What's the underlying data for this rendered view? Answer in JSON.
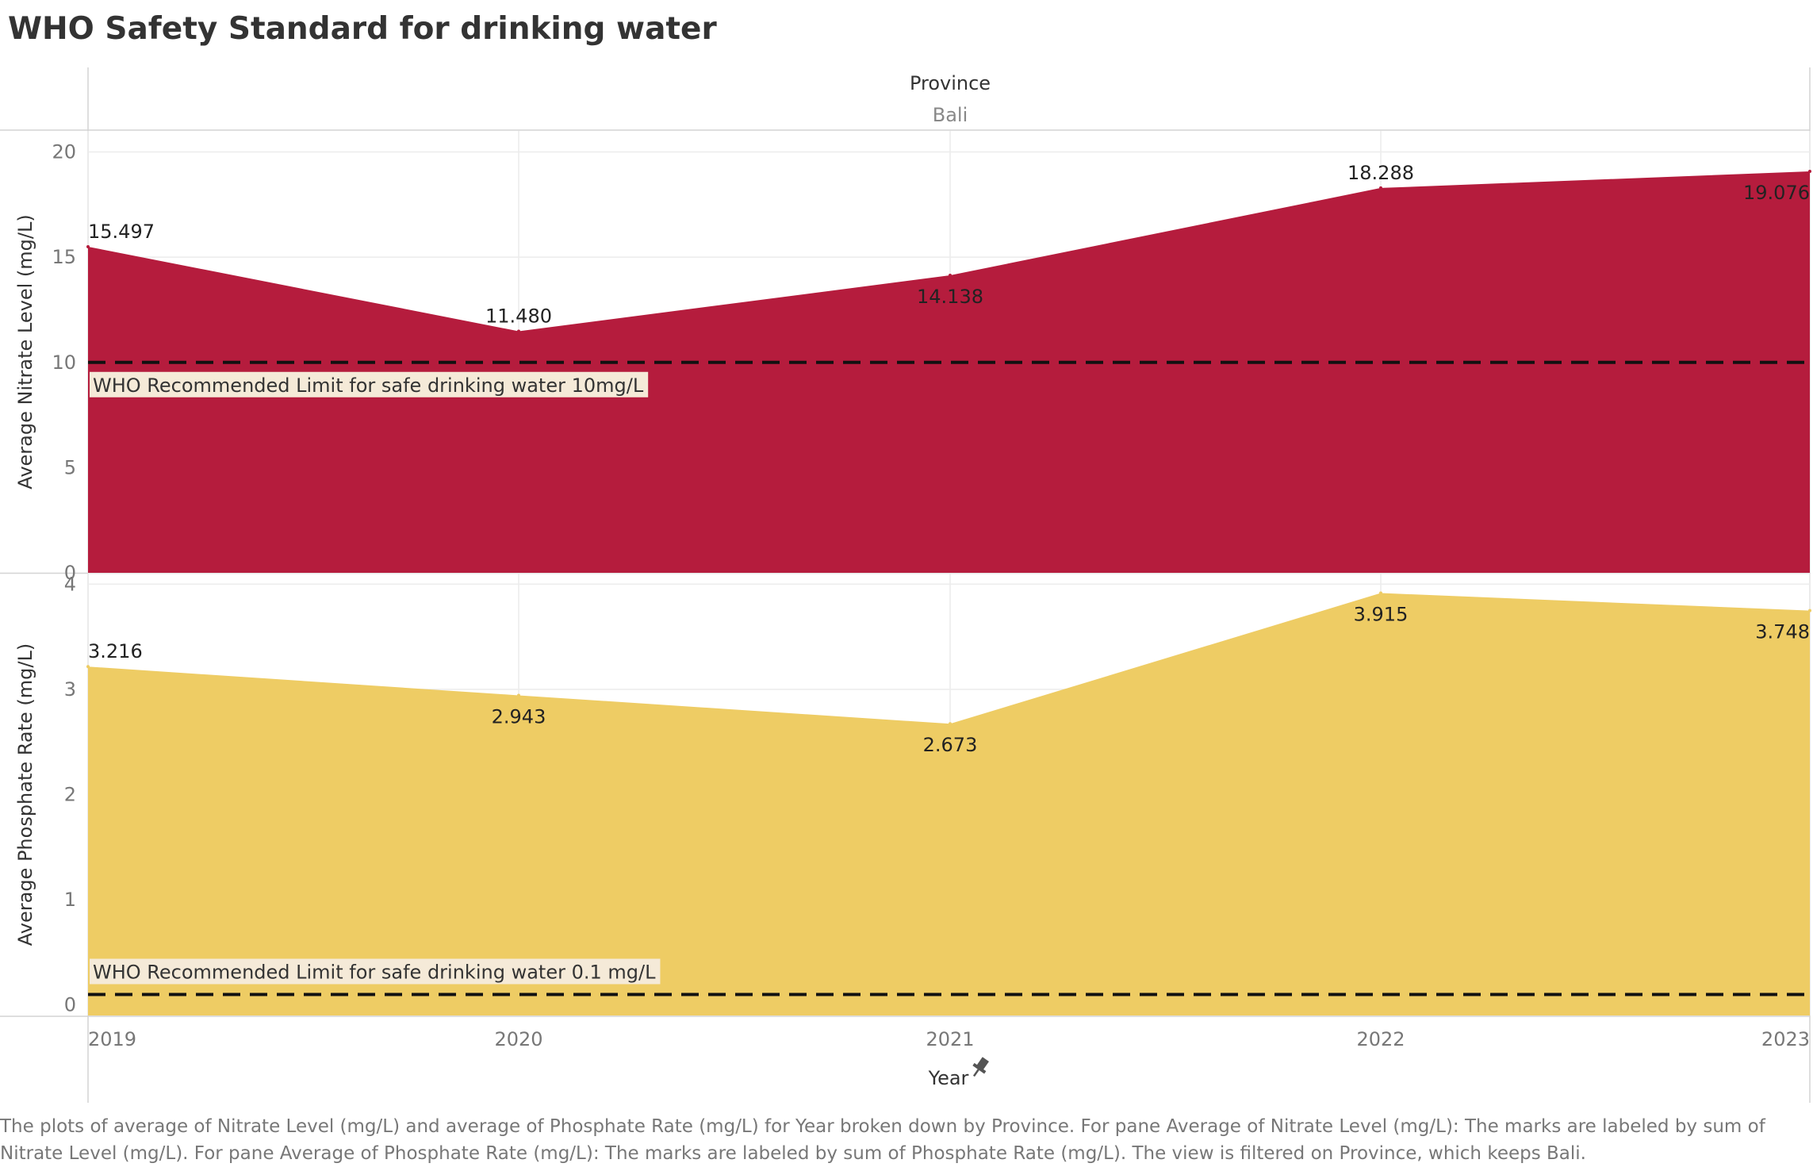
{
  "title": "WHO Safety Standard for drinking water",
  "caption": "The plots of average of Nitrate Level (mg/L) and average of Phosphate Rate (mg/L) for Year broken down by Province.  For pane Average of Nitrate Level (mg/L):  The marks are labeled by sum of Nitrate Level (mg/L).  For pane Average of Phosphate Rate (mg/L):  The marks are labeled by sum of Phosphate Rate (mg/L). The view is filtered on Province, which keeps Bali.",
  "column_header": {
    "label": "Province",
    "value": "Bali"
  },
  "x_axis": {
    "label": "Year",
    "icon": "pin-icon"
  },
  "chart_data": [
    {
      "type": "area",
      "x": [
        "2019",
        "2020",
        "2021",
        "2022",
        "2023"
      ],
      "values": [
        15.497,
        11.48,
        14.138,
        18.288,
        19.076
      ],
      "labels": [
        "15.497",
        "11.480",
        "14.138",
        "18.288",
        "19.076"
      ],
      "ylabel": "Average Nitrate Level (mg/L)",
      "ylim": [
        0,
        21
      ],
      "yticks": [
        0,
        5,
        10,
        15,
        20
      ],
      "color": "#B51C3D",
      "grid": true,
      "reference_line": {
        "value": 10,
        "label": "WHO Recommended Limit for safe drinking water 10mg/L",
        "style": "dashed",
        "color": "#111111"
      }
    },
    {
      "type": "area",
      "x": [
        "2019",
        "2020",
        "2021",
        "2022",
        "2023"
      ],
      "values": [
        3.216,
        2.943,
        2.673,
        3.915,
        3.748
      ],
      "labels": [
        "3.216",
        "2.943",
        "2.673",
        "3.915",
        "3.748"
      ],
      "ylabel": "Average Phosphate Rate (mg/L)",
      "ylim": [
        -0.1,
        4.1
      ],
      "yticks": [
        0,
        1,
        2,
        3,
        4
      ],
      "color": "#EECC64",
      "grid": true,
      "reference_line": {
        "value": 0.1,
        "label": "WHO Recommended Limit for safe drinking water 0.1 mg/L",
        "style": "dashed",
        "color": "#111111"
      }
    }
  ]
}
